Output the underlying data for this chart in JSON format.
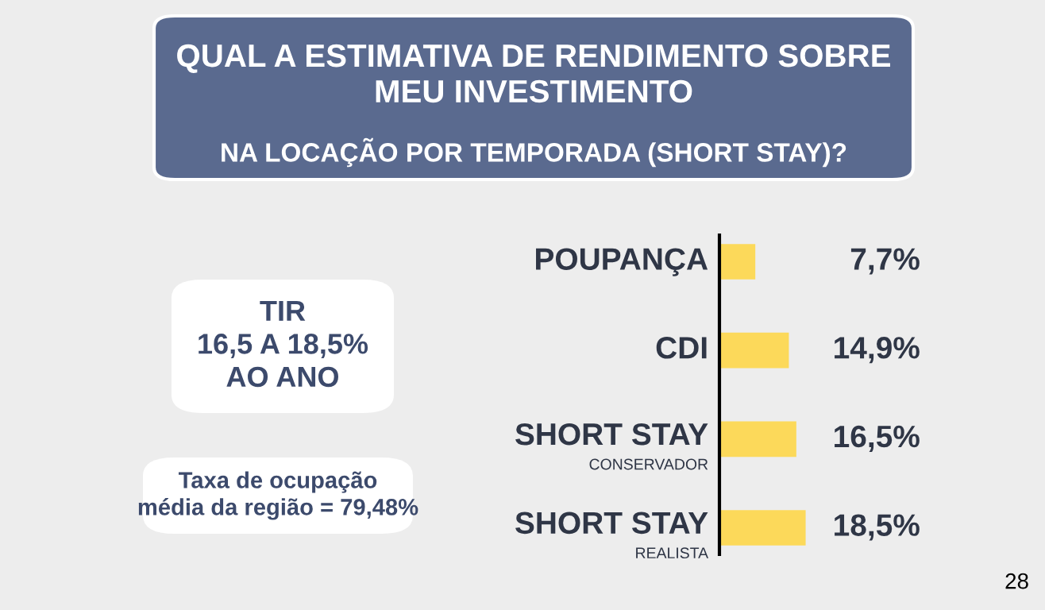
{
  "chart_data": {
    "type": "bar",
    "orientation": "horizontal",
    "title": "QUAL A ESTIMATIVA DE RENDIMENTO SOBRE\nMEU INVESTIMENTO",
    "subtitle": "NA LOCAÇÃO POR TEMPORADA (SHORT STAY)?",
    "categories": [
      "POUPANÇA",
      "CDI",
      "SHORT STAY\nCONSERVADOR",
      "SHORT STAY\nREALISTA"
    ],
    "values": [
      7.7,
      14.9,
      16.5,
      18.5
    ],
    "value_labels": [
      "7,7%",
      "14,9%",
      "16,5%",
      "18,5%"
    ],
    "color": "#fcd95a",
    "annotations": [
      "TIR\n16,5 A 18,5%\nAO ANO",
      "Taxa de ocupação\nmédia da região = 79,48%",
      "28"
    ]
  }
}
